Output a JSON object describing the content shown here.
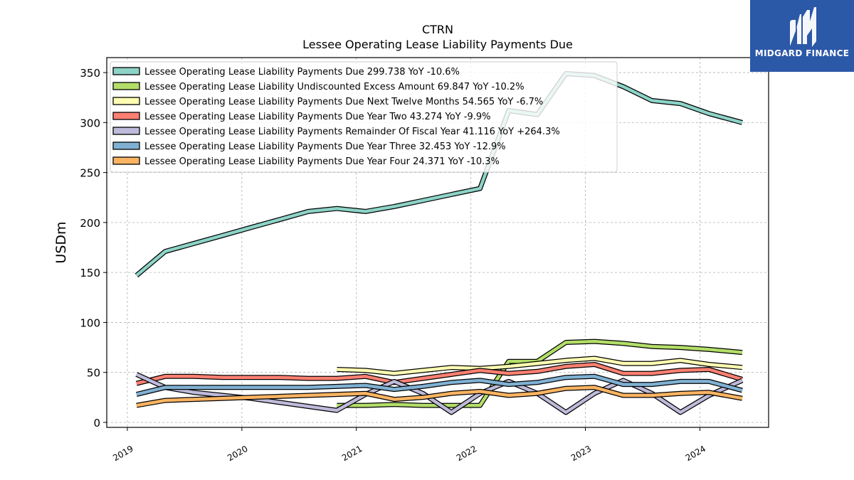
{
  "header": {
    "ticker": "CTRN",
    "subtitle": "Lessee Operating Lease Liability Payments Due"
  },
  "logo": {
    "text": "MIDGARD FINANCE",
    "background": "#2c58a8"
  },
  "chart_data": {
    "type": "line",
    "ylabel": "USDm",
    "xlabel": "",
    "ylim": [
      -5,
      365
    ],
    "xlim": [
      2018.82,
      2024.6
    ],
    "yticks": [
      0,
      50,
      100,
      150,
      200,
      250,
      300,
      350
    ],
    "xticks": [
      2019,
      2020,
      2021,
      2022,
      2023,
      2024
    ],
    "grid": true,
    "legend": "top-left",
    "series": [
      {
        "name": "Lessee Operating Lease Liability Payments Due",
        "legend_value": "299.738",
        "legend_yoy": "YoY -10.6%",
        "color": "#8dd3c7",
        "x": [
          2019.08,
          2019.33,
          2019.58,
          2019.83,
          2020.08,
          2020.33,
          2020.58,
          2020.83,
          2021.08,
          2021.33,
          2021.58,
          2021.83,
          2022.08,
          2022.33,
          2022.58,
          2022.83,
          2023.08,
          2023.33,
          2023.58,
          2023.83,
          2024.08,
          2024.37
        ],
        "y": [
          147,
          171,
          179,
          187,
          195,
          203,
          211,
          214,
          211,
          216,
          222,
          228,
          234,
          312,
          308,
          349,
          347,
          336,
          322,
          319,
          309,
          300
        ]
      },
      {
        "name": "Lessee Operating Lease Liability Undiscounted Excess Amount",
        "legend_value": "69.847",
        "legend_yoy": "YoY -10.2%",
        "color": "#b3de69",
        "x": [
          2020.83,
          2021.08,
          2021.33,
          2021.58,
          2021.83,
          2022.08,
          2022.33,
          2022.58,
          2022.83,
          2023.08,
          2023.33,
          2023.58,
          2023.83,
          2024.08,
          2024.37
        ],
        "y": [
          17,
          17,
          18,
          17,
          17,
          17,
          61,
          61,
          80,
          81,
          79,
          76,
          75,
          73,
          70
        ]
      },
      {
        "name": "Lessee Operating Lease Liability Payments Due Next Twelve Months",
        "legend_value": "54.565",
        "legend_yoy": "YoY -6.7%",
        "color": "#ffffb3",
        "x": [
          2020.83,
          2021.08,
          2021.33,
          2021.58,
          2021.83,
          2022.08,
          2022.33,
          2022.58,
          2022.83,
          2023.08,
          2023.33,
          2023.58,
          2023.83,
          2024.08,
          2024.37
        ],
        "y": [
          53,
          52,
          49,
          52,
          55,
          54,
          56,
          59,
          62,
          64,
          59,
          59,
          62,
          58,
          55
        ]
      },
      {
        "name": "Lessee Operating Lease Liability Payments Due Year Two",
        "legend_value": "43.274",
        "legend_yoy": "YoY -9.9%",
        "color": "#fb8072",
        "x": [
          2019.08,
          2019.33,
          2019.58,
          2019.83,
          2020.08,
          2020.33,
          2020.58,
          2020.83,
          2021.08,
          2021.33,
          2021.58,
          2021.83,
          2022.08,
          2022.33,
          2022.58,
          2022.83,
          2023.08,
          2023.33,
          2023.58,
          2023.83,
          2024.08,
          2024.37
        ],
        "y": [
          39,
          46,
          46,
          45,
          45,
          45,
          44,
          44,
          46,
          40,
          44,
          48,
          52,
          49,
          51,
          56,
          58,
          49,
          49,
          52,
          53,
          43
        ]
      },
      {
        "name": "Lessee Operating Lease Liability Payments Remainder Of Fiscal Year",
        "legend_value": "41.116",
        "legend_yoy": "YoY +264.3%",
        "color": "#bebada",
        "x": [
          2019.08,
          2019.33,
          2019.58,
          2019.83,
          2020.08,
          2020.33,
          2020.58,
          2020.83,
          2021.08,
          2021.33,
          2021.58,
          2021.83,
          2022.08,
          2022.33,
          2022.58,
          2022.83,
          2023.08,
          2023.33,
          2023.58,
          2023.83,
          2024.08,
          2024.37
        ],
        "y": [
          48,
          35,
          30,
          27,
          24,
          20,
          16,
          12,
          28,
          41,
          29,
          10,
          29,
          41,
          29,
          10,
          29,
          42,
          29,
          10,
          27,
          42
        ]
      },
      {
        "name": "Lessee Operating Lease Liability Payments Due Year Three",
        "legend_value": "32.453",
        "legend_yoy": "YoY -12.9%",
        "color": "#80b1d3",
        "x": [
          2019.08,
          2019.33,
          2019.58,
          2019.83,
          2020.08,
          2020.33,
          2020.58,
          2020.83,
          2021.08,
          2021.33,
          2021.58,
          2021.83,
          2022.08,
          2022.33,
          2022.58,
          2022.83,
          2023.08,
          2023.33,
          2023.58,
          2023.83,
          2024.08,
          2024.37
        ],
        "y": [
          28,
          35,
          35,
          35,
          35,
          35,
          35,
          36,
          37,
          33,
          36,
          40,
          42,
          38,
          40,
          45,
          46,
          38,
          38,
          41,
          41,
          32
        ]
      },
      {
        "name": "Lessee Operating Lease Liability Payments Due Year Four",
        "legend_value": "24.371",
        "legend_yoy": "YoY -10.3%",
        "color": "#fdb462",
        "x": [
          2019.08,
          2019.33,
          2019.58,
          2019.83,
          2020.08,
          2020.33,
          2020.58,
          2020.83,
          2021.08,
          2021.33,
          2021.58,
          2021.83,
          2022.08,
          2022.33,
          2022.58,
          2022.83,
          2023.08,
          2023.33,
          2023.58,
          2023.83,
          2024.08,
          2024.37
        ],
        "y": [
          17,
          22,
          23,
          24,
          25,
          26,
          27,
          28,
          29,
          23,
          25,
          29,
          31,
          27,
          29,
          34,
          35,
          27,
          27,
          29,
          30,
          24
        ]
      }
    ]
  }
}
